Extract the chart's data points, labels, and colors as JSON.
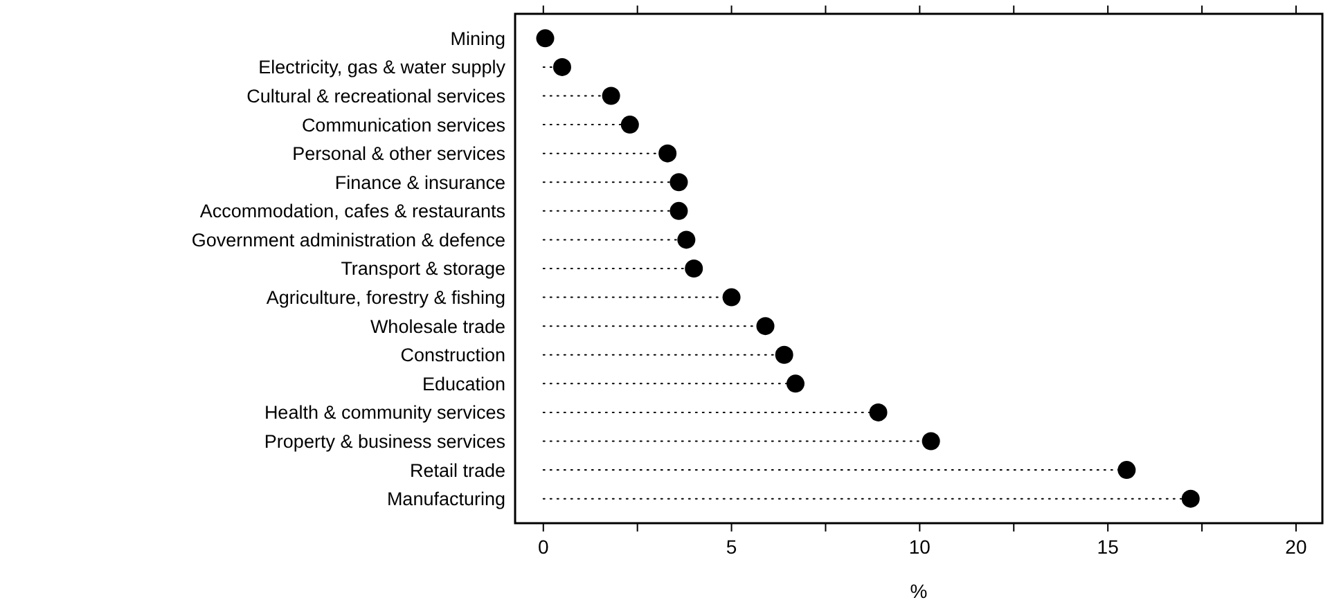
{
  "chart_data": {
    "type": "lollipop",
    "orientation": "horizontal",
    "xlabel": "%",
    "categories": [
      "Mining",
      "Electricity, gas & water supply",
      "Cultural & recreational services",
      "Communication services",
      "Personal & other services",
      "Finance & insurance",
      "Accommodation, cafes & restaurants",
      "Government administration & defence",
      "Transport & storage",
      "Agriculture, forestry & fishing",
      "Wholesale trade",
      "Construction",
      "Education",
      "Health & community services",
      "Property & business services",
      "Retail trade",
      "Manufacturing"
    ],
    "values": [
      0.05,
      0.5,
      1.8,
      2.3,
      3.3,
      3.6,
      3.6,
      3.8,
      4.0,
      5.0,
      5.9,
      6.4,
      6.7,
      8.9,
      10.3,
      15.5,
      17.2
    ],
    "color": "#000000",
    "marker": "circle",
    "line_style": "dotted",
    "xlim": [
      -0.75,
      20.7
    ],
    "xticks": [
      0,
      {
        "value": 2.5,
        "label": null
      },
      5,
      {
        "value": 7.5,
        "label": null
      },
      10,
      {
        "value": 12.5,
        "label": null
      },
      15,
      {
        "value": 17.5,
        "label": null
      },
      20
    ],
    "grid": false
  }
}
